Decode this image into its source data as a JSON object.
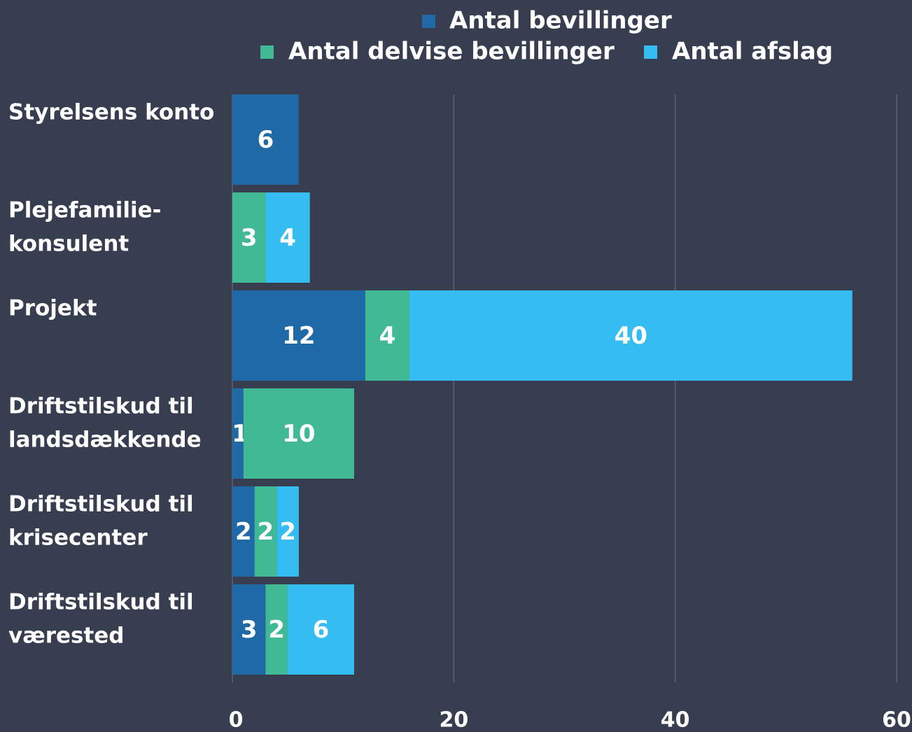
{
  "chart_data": {
    "type": "stacked-barh",
    "categories": [
      [
        "Styrelsens konto"
      ],
      [
        "Plejefamilie-",
        "konsulent"
      ],
      [
        "Projekt"
      ],
      [
        "Driftstilskud til",
        "landsdækkende"
      ],
      [
        "Driftstilskud til",
        "krisecenter"
      ],
      [
        "Driftstilskud til",
        "værested"
      ]
    ],
    "series": [
      {
        "name": "Antal bevillinger",
        "color": "#1f6aa6",
        "values": [
          6,
          null,
          12,
          1,
          2,
          3
        ]
      },
      {
        "name": "Antal delvise bevillinger",
        "color": "#41b994",
        "values": [
          null,
          3,
          4,
          10,
          2,
          2
        ]
      },
      {
        "name": "Antal afslag",
        "color": "#35bdf2",
        "values": [
          null,
          4,
          40,
          null,
          2,
          6
        ]
      }
    ],
    "xlim": [
      0,
      60
    ],
    "xticks": [
      0,
      20,
      40,
      60
    ],
    "grid": true
  }
}
